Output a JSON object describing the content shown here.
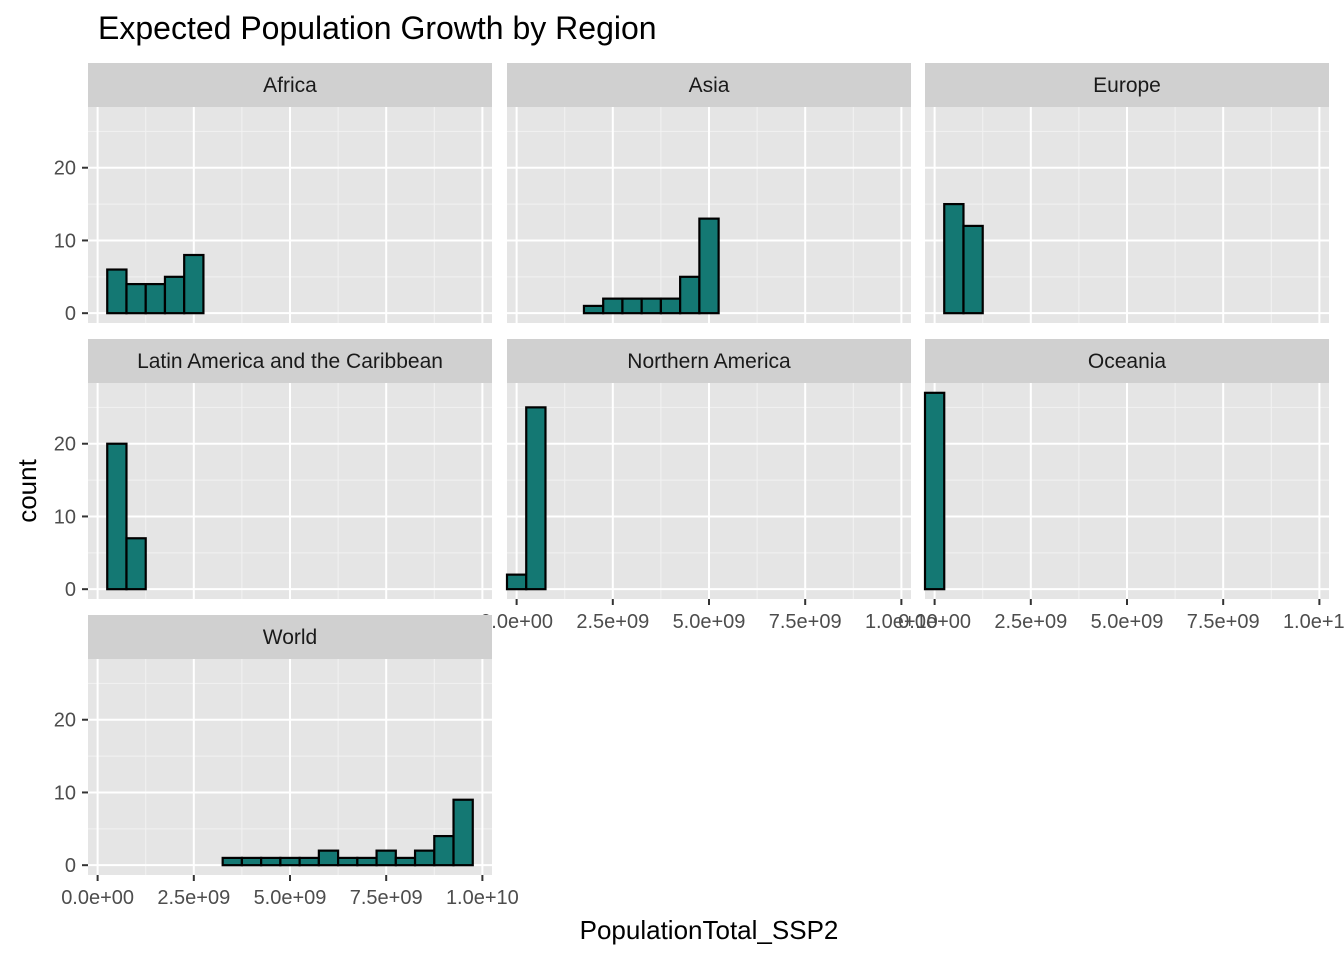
{
  "chart_data": {
    "type": "bar",
    "title": "Expected Population Growth by Region",
    "xlabel": "PopulationTotal_SSP2",
    "ylabel": "count",
    "x_ticks": [
      0,
      2500000000,
      5000000000,
      7500000000,
      10000000000
    ],
    "x_tick_labels": [
      "0.0e+00",
      "2.5e+09",
      "5.0e+09",
      "7.5e+09",
      "1.0e+10"
    ],
    "y_ticks": [
      0,
      10,
      20
    ],
    "y_tick_labels": [
      "0",
      "10",
      "20"
    ],
    "xlim": [
      -250000000,
      10250000000
    ],
    "ylim": [
      -1.35,
      28.35
    ],
    "bin_width": 500000000,
    "bin_start": -250000000,
    "fill_color": "#147873",
    "outline_color": "#000000",
    "panel_background": "#e5e5e5",
    "strip_background": "#d0d0d0",
    "grid": true,
    "facets": [
      {
        "name": "Africa",
        "counts": [
          0,
          6,
          4,
          4,
          5,
          8,
          0,
          0,
          0,
          0,
          0,
          0,
          0,
          0,
          0,
          0,
          0,
          0,
          0,
          0
        ]
      },
      {
        "name": "Asia",
        "counts": [
          0,
          0,
          0,
          0,
          1,
          2,
          2,
          2,
          2,
          5,
          13,
          0,
          0,
          0,
          0,
          0,
          0,
          0,
          0,
          0
        ]
      },
      {
        "name": "Europe",
        "counts": [
          0,
          15,
          12,
          0,
          0,
          0,
          0,
          0,
          0,
          0,
          0,
          0,
          0,
          0,
          0,
          0,
          0,
          0,
          0,
          0
        ]
      },
      {
        "name": "Latin America and the Caribbean",
        "counts": [
          0,
          20,
          7,
          0,
          0,
          0,
          0,
          0,
          0,
          0,
          0,
          0,
          0,
          0,
          0,
          0,
          0,
          0,
          0,
          0
        ]
      },
      {
        "name": "Northern America",
        "counts": [
          2,
          25,
          0,
          0,
          0,
          0,
          0,
          0,
          0,
          0,
          0,
          0,
          0,
          0,
          0,
          0,
          0,
          0,
          0,
          0
        ]
      },
      {
        "name": "Oceania",
        "counts": [
          27,
          0,
          0,
          0,
          0,
          0,
          0,
          0,
          0,
          0,
          0,
          0,
          0,
          0,
          0,
          0,
          0,
          0,
          0,
          0
        ]
      },
      {
        "name": "World",
        "counts": [
          0,
          0,
          0,
          0,
          0,
          0,
          0,
          1,
          1,
          1,
          1,
          1,
          2,
          1,
          1,
          2,
          1,
          2,
          4,
          9
        ]
      }
    ]
  }
}
